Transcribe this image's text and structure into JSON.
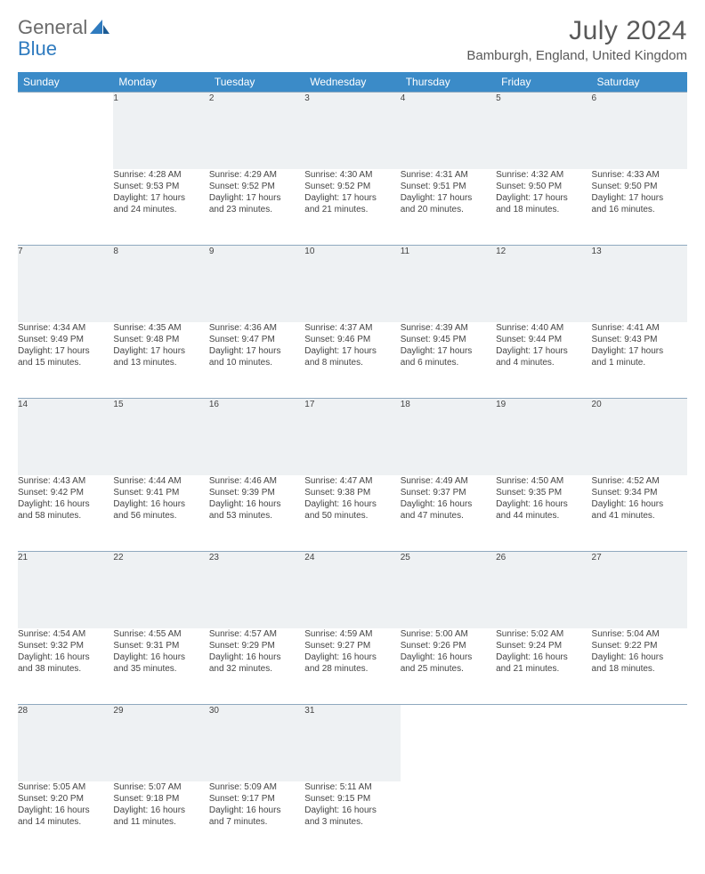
{
  "logo": {
    "text1": "General",
    "text2": "Blue"
  },
  "title": "July 2024",
  "location": "Bamburgh, England, United Kingdom",
  "colors": {
    "header_bg": "#3b8bc8",
    "header_fg": "#ffffff",
    "daynum_bg": "#eef1f3",
    "border": "#8fa9bf",
    "text": "#444444",
    "title_color": "#595959"
  },
  "day_headers": [
    "Sunday",
    "Monday",
    "Tuesday",
    "Wednesday",
    "Thursday",
    "Friday",
    "Saturday"
  ],
  "weeks": [
    [
      {
        "n": "",
        "lines": []
      },
      {
        "n": "1",
        "lines": [
          "Sunrise: 4:28 AM",
          "Sunset: 9:53 PM",
          "Daylight: 17 hours",
          "and 24 minutes."
        ]
      },
      {
        "n": "2",
        "lines": [
          "Sunrise: 4:29 AM",
          "Sunset: 9:52 PM",
          "Daylight: 17 hours",
          "and 23 minutes."
        ]
      },
      {
        "n": "3",
        "lines": [
          "Sunrise: 4:30 AM",
          "Sunset: 9:52 PM",
          "Daylight: 17 hours",
          "and 21 minutes."
        ]
      },
      {
        "n": "4",
        "lines": [
          "Sunrise: 4:31 AM",
          "Sunset: 9:51 PM",
          "Daylight: 17 hours",
          "and 20 minutes."
        ]
      },
      {
        "n": "5",
        "lines": [
          "Sunrise: 4:32 AM",
          "Sunset: 9:50 PM",
          "Daylight: 17 hours",
          "and 18 minutes."
        ]
      },
      {
        "n": "6",
        "lines": [
          "Sunrise: 4:33 AM",
          "Sunset: 9:50 PM",
          "Daylight: 17 hours",
          "and 16 minutes."
        ]
      }
    ],
    [
      {
        "n": "7",
        "lines": [
          "Sunrise: 4:34 AM",
          "Sunset: 9:49 PM",
          "Daylight: 17 hours",
          "and 15 minutes."
        ]
      },
      {
        "n": "8",
        "lines": [
          "Sunrise: 4:35 AM",
          "Sunset: 9:48 PM",
          "Daylight: 17 hours",
          "and 13 minutes."
        ]
      },
      {
        "n": "9",
        "lines": [
          "Sunrise: 4:36 AM",
          "Sunset: 9:47 PM",
          "Daylight: 17 hours",
          "and 10 minutes."
        ]
      },
      {
        "n": "10",
        "lines": [
          "Sunrise: 4:37 AM",
          "Sunset: 9:46 PM",
          "Daylight: 17 hours",
          "and 8 minutes."
        ]
      },
      {
        "n": "11",
        "lines": [
          "Sunrise: 4:39 AM",
          "Sunset: 9:45 PM",
          "Daylight: 17 hours",
          "and 6 minutes."
        ]
      },
      {
        "n": "12",
        "lines": [
          "Sunrise: 4:40 AM",
          "Sunset: 9:44 PM",
          "Daylight: 17 hours",
          "and 4 minutes."
        ]
      },
      {
        "n": "13",
        "lines": [
          "Sunrise: 4:41 AM",
          "Sunset: 9:43 PM",
          "Daylight: 17 hours",
          "and 1 minute."
        ]
      }
    ],
    [
      {
        "n": "14",
        "lines": [
          "Sunrise: 4:43 AM",
          "Sunset: 9:42 PM",
          "Daylight: 16 hours",
          "and 58 minutes."
        ]
      },
      {
        "n": "15",
        "lines": [
          "Sunrise: 4:44 AM",
          "Sunset: 9:41 PM",
          "Daylight: 16 hours",
          "and 56 minutes."
        ]
      },
      {
        "n": "16",
        "lines": [
          "Sunrise: 4:46 AM",
          "Sunset: 9:39 PM",
          "Daylight: 16 hours",
          "and 53 minutes."
        ]
      },
      {
        "n": "17",
        "lines": [
          "Sunrise: 4:47 AM",
          "Sunset: 9:38 PM",
          "Daylight: 16 hours",
          "and 50 minutes."
        ]
      },
      {
        "n": "18",
        "lines": [
          "Sunrise: 4:49 AM",
          "Sunset: 9:37 PM",
          "Daylight: 16 hours",
          "and 47 minutes."
        ]
      },
      {
        "n": "19",
        "lines": [
          "Sunrise: 4:50 AM",
          "Sunset: 9:35 PM",
          "Daylight: 16 hours",
          "and 44 minutes."
        ]
      },
      {
        "n": "20",
        "lines": [
          "Sunrise: 4:52 AM",
          "Sunset: 9:34 PM",
          "Daylight: 16 hours",
          "and 41 minutes."
        ]
      }
    ],
    [
      {
        "n": "21",
        "lines": [
          "Sunrise: 4:54 AM",
          "Sunset: 9:32 PM",
          "Daylight: 16 hours",
          "and 38 minutes."
        ]
      },
      {
        "n": "22",
        "lines": [
          "Sunrise: 4:55 AM",
          "Sunset: 9:31 PM",
          "Daylight: 16 hours",
          "and 35 minutes."
        ]
      },
      {
        "n": "23",
        "lines": [
          "Sunrise: 4:57 AM",
          "Sunset: 9:29 PM",
          "Daylight: 16 hours",
          "and 32 minutes."
        ]
      },
      {
        "n": "24",
        "lines": [
          "Sunrise: 4:59 AM",
          "Sunset: 9:27 PM",
          "Daylight: 16 hours",
          "and 28 minutes."
        ]
      },
      {
        "n": "25",
        "lines": [
          "Sunrise: 5:00 AM",
          "Sunset: 9:26 PM",
          "Daylight: 16 hours",
          "and 25 minutes."
        ]
      },
      {
        "n": "26",
        "lines": [
          "Sunrise: 5:02 AM",
          "Sunset: 9:24 PM",
          "Daylight: 16 hours",
          "and 21 minutes."
        ]
      },
      {
        "n": "27",
        "lines": [
          "Sunrise: 5:04 AM",
          "Sunset: 9:22 PM",
          "Daylight: 16 hours",
          "and 18 minutes."
        ]
      }
    ],
    [
      {
        "n": "28",
        "lines": [
          "Sunrise: 5:05 AM",
          "Sunset: 9:20 PM",
          "Daylight: 16 hours",
          "and 14 minutes."
        ]
      },
      {
        "n": "29",
        "lines": [
          "Sunrise: 5:07 AM",
          "Sunset: 9:18 PM",
          "Daylight: 16 hours",
          "and 11 minutes."
        ]
      },
      {
        "n": "30",
        "lines": [
          "Sunrise: 5:09 AM",
          "Sunset: 9:17 PM",
          "Daylight: 16 hours",
          "and 7 minutes."
        ]
      },
      {
        "n": "31",
        "lines": [
          "Sunrise: 5:11 AM",
          "Sunset: 9:15 PM",
          "Daylight: 16 hours",
          "and 3 minutes."
        ]
      },
      {
        "n": "",
        "lines": []
      },
      {
        "n": "",
        "lines": []
      },
      {
        "n": "",
        "lines": []
      }
    ]
  ]
}
